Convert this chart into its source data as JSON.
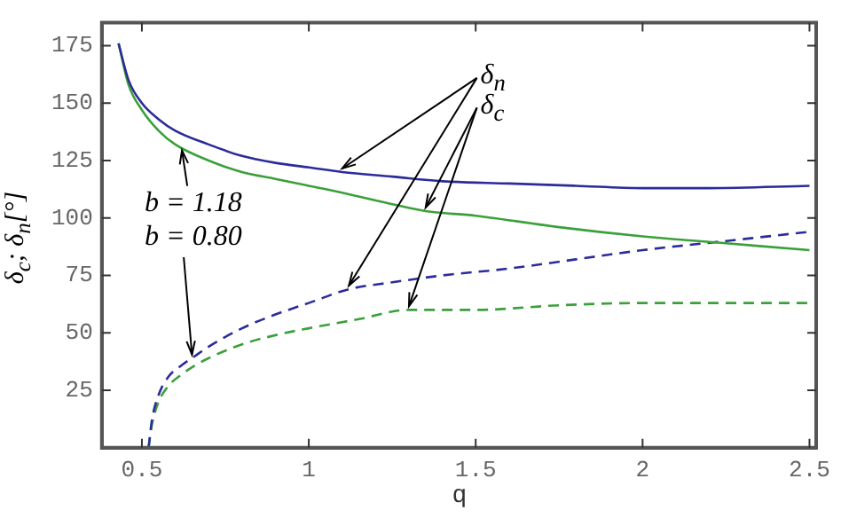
{
  "chart_data": {
    "type": "line",
    "xlabel": "q",
    "ylabel": "δ$_{c}$; δ$_{n}$[°]",
    "annotations": [
      {
        "text": "δ$_{n}$",
        "x": 1.1,
        "y": 120
      },
      {
        "text": "δ$_{c}$",
        "x": 1.35,
        "y": 103
      },
      {
        "text": "b = 1.18",
        "x": 0.62,
        "y": 131
      },
      {
        "text": "b = 0.80",
        "x": 0.65,
        "y": 39
      }
    ],
    "xlim": [
      0.38,
      2.52
    ],
    "xticks": [
      0.5,
      1,
      1.5,
      2,
      2.5
    ],
    "ylim": [
      0,
      185
    ],
    "yticks": [
      25,
      50,
      75,
      100,
      125,
      150,
      175
    ],
    "grid": false,
    "legend": false,
    "marker": "none",
    "series": [
      {
        "color": "#2b2b9a",
        "line_style": "solid",
        "x": [
          0.43,
          0.46,
          0.5,
          0.55,
          0.6,
          0.7,
          0.8,
          0.9,
          1.0,
          1.1,
          1.25,
          1.4,
          1.6,
          1.8,
          2.0,
          2.2,
          2.5
        ],
        "values": [
          176,
          160,
          150,
          143,
          138,
          132,
          127,
          124,
          122,
          120,
          118,
          116,
          115,
          114,
          113,
          113,
          114
        ]
      },
      {
        "color": "#3aa03a",
        "line_style": "solid",
        "x": [
          0.43,
          0.46,
          0.5,
          0.55,
          0.6,
          0.7,
          0.8,
          0.9,
          1.0,
          1.1,
          1.25,
          1.35,
          1.5,
          1.75,
          2.0,
          2.25,
          2.5
        ],
        "values": [
          176,
          158,
          147,
          138,
          132,
          125,
          120,
          117,
          114,
          111,
          106,
          103,
          101,
          96,
          92,
          89,
          86
        ]
      },
      {
        "color": "#2b2b9a",
        "line_style": "dashed",
        "x": [
          0.52,
          0.53,
          0.55,
          0.58,
          0.62,
          0.65,
          0.7,
          0.8,
          0.9,
          1.0,
          1.12,
          1.25,
          1.4,
          1.6,
          1.8,
          2.0,
          2.25,
          2.5
        ],
        "values": [
          0,
          12,
          23,
          31,
          36,
          39,
          44,
          52,
          58,
          63,
          69,
          72,
          75,
          78,
          82,
          86,
          90,
          94
        ]
      },
      {
        "color": "#3aa03a",
        "line_style": "dashed",
        "x": [
          0.52,
          0.53,
          0.55,
          0.58,
          0.62,
          0.65,
          0.7,
          0.8,
          0.9,
          1.0,
          1.15,
          1.3,
          1.5,
          1.75,
          2.0,
          2.25,
          2.5
        ],
        "values": [
          0,
          10,
          20,
          27,
          32,
          35,
          39,
          45,
          49,
          52,
          56,
          60,
          60,
          62,
          63,
          63,
          63
        ]
      }
    ]
  }
}
